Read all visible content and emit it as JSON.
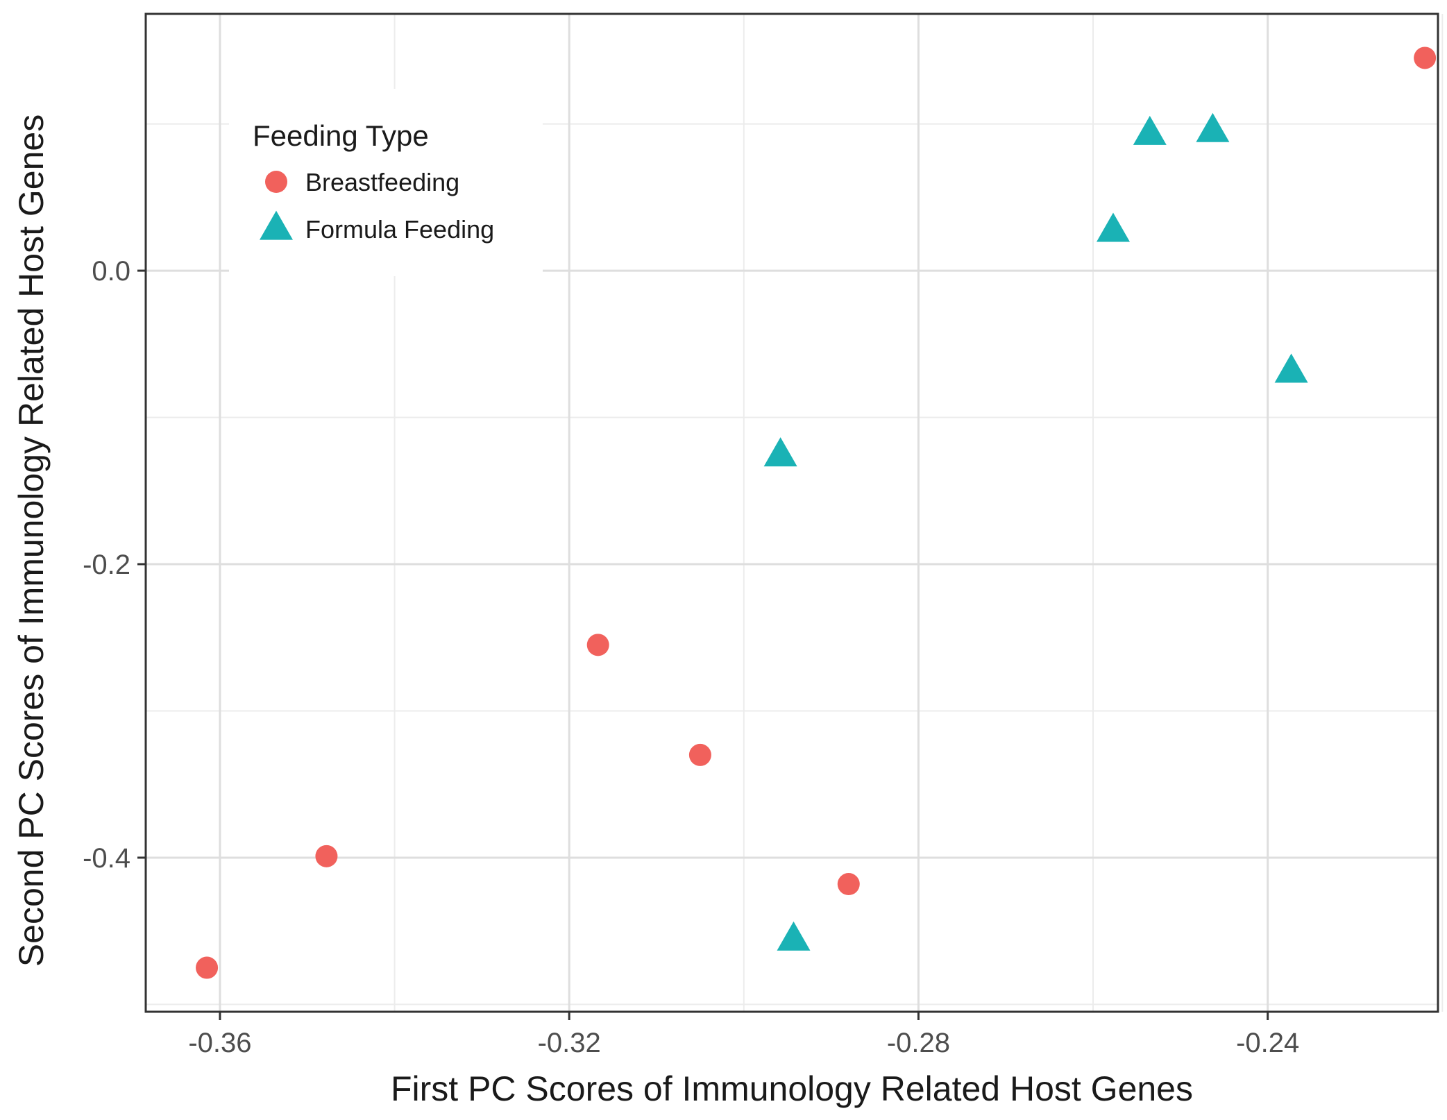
{
  "chart_data": {
    "type": "scatter",
    "xlabel": "First PC Scores of Immunology Related Host Genes",
    "ylabel": "Second PC Scores of Immunology Related Host Genes",
    "xlim": [
      -0.3685,
      -0.2205
    ],
    "ylim": [
      -0.505,
      0.175
    ],
    "x_ticks": [
      -0.36,
      -0.32,
      -0.28,
      -0.24
    ],
    "x_tick_labels": [
      "-0.36",
      "-0.32",
      "-0.28",
      "-0.24"
    ],
    "x_minor_ticks": [
      -0.34,
      -0.3,
      -0.26,
      -0.22
    ],
    "y_ticks": [
      -0.4,
      -0.2,
      0.0
    ],
    "y_tick_labels": [
      "-0.4",
      "-0.2",
      "0.0"
    ],
    "y_minor_ticks": [
      -0.5,
      -0.3,
      -0.1,
      0.1
    ],
    "grid": true,
    "legend": {
      "title": "Feeding Type",
      "position": "top-left",
      "entries": [
        "Breastfeeding",
        "Formula Feeding"
      ]
    },
    "series": [
      {
        "name": "Breastfeeding",
        "marker": "circle",
        "color": "#F1615C",
        "points": [
          {
            "x": -0.3615,
            "y": -0.475
          },
          {
            "x": -0.3478,
            "y": -0.399
          },
          {
            "x": -0.3167,
            "y": -0.255
          },
          {
            "x": -0.305,
            "y": -0.33
          },
          {
            "x": -0.288,
            "y": -0.418
          },
          {
            "x": -0.222,
            "y": 0.145
          }
        ]
      },
      {
        "name": "Formula Feeding",
        "marker": "triangle",
        "color": "#1AB2B5",
        "points": [
          {
            "x": -0.2958,
            "y": -0.125
          },
          {
            "x": -0.2943,
            "y": -0.455
          },
          {
            "x": -0.2577,
            "y": 0.028
          },
          {
            "x": -0.2535,
            "y": 0.094
          },
          {
            "x": -0.2463,
            "y": 0.096
          },
          {
            "x": -0.2373,
            "y": -0.068
          }
        ]
      }
    ]
  }
}
